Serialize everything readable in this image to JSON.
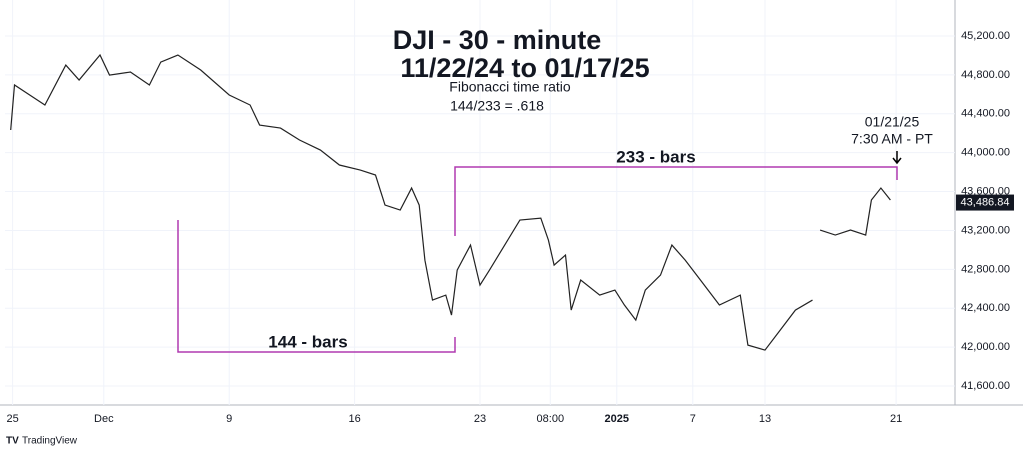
{
  "chart_data": {
    "type": "line",
    "title": "DJI - 30 - minute",
    "subtitle": "11/22/24 to 01/17/25",
    "annotations": [
      "Fibonacci time ratio",
      "144/233 = .618",
      "233 - bars",
      "144 - bars",
      "01/21/25",
      "7:30 AM - PT"
    ],
    "last_price": {
      "value": 43486.84,
      "label": "43,486.84"
    },
    "brand": "TradingView",
    "grid": true,
    "xlim": [
      0,
      500
    ],
    "xticks": [
      {
        "value": 4,
        "label": "25"
      },
      {
        "value": 52,
        "label": "Dec"
      },
      {
        "value": 118,
        "label": "9"
      },
      {
        "value": 184,
        "label": "16"
      },
      {
        "value": 250,
        "label": "23"
      },
      {
        "value": 287,
        "label": "08:00"
      },
      {
        "value": 322,
        "label": "2025"
      },
      {
        "value": 362,
        "label": "7"
      },
      {
        "value": 400,
        "label": "13"
      },
      {
        "value": 469,
        "label": "21"
      }
    ],
    "ylim": [
      41405,
      45570
    ],
    "yticks": [
      {
        "value": 41600,
        "label": "41,600.00"
      },
      {
        "value": 42000,
        "label": "42,000.00"
      },
      {
        "value": 42400,
        "label": "42,400.00"
      },
      {
        "value": 42800,
        "label": "42,800.00"
      },
      {
        "value": 43200,
        "label": "43,200.00"
      },
      {
        "value": 43600,
        "label": "43,600.00"
      },
      {
        "value": 44000,
        "label": "44,000.00"
      },
      {
        "value": 44400,
        "label": "44,400.00"
      },
      {
        "value": 44800,
        "label": "44,800.00"
      },
      {
        "value": 45200,
        "label": "45,200.00"
      }
    ],
    "series": [
      {
        "color": "#222222",
        "x": [
          3,
          5,
          13,
          21,
          32,
          39,
          50,
          55,
          66,
          76,
          82,
          91,
          103,
          118,
          129,
          134,
          145,
          155,
          166,
          176,
          187,
          195,
          200,
          208,
          214,
          218,
          221,
          225,
          232,
          235,
          238,
          245,
          250,
          255,
          263,
          271,
          282,
          286,
          289,
          295,
          298,
          303,
          313,
          321,
          326,
          332,
          337,
          345,
          351,
          358,
          366,
          376,
          387,
          391,
          400,
          408,
          416,
          425,
          427,
          429,
          437,
          445,
          453,
          456,
          461,
          466
        ],
        "values": [
          44233,
          44696,
          44593,
          44490,
          44901,
          44747,
          45004,
          44798,
          44829,
          44696,
          44932,
          45004,
          44850,
          44593,
          44490,
          44284,
          44253,
          44130,
          44027,
          43873,
          43821,
          43770,
          43461,
          43410,
          43636,
          43461,
          42895,
          42484,
          42535,
          42330,
          42793,
          43050,
          42638,
          42793,
          43050,
          43307,
          43327,
          43101,
          42844,
          42947,
          42381,
          42690,
          42535,
          42587,
          42433,
          42278,
          42587,
          42741,
          43050,
          42895,
          42690,
          42433,
          42535,
          42021,
          41970,
          42175,
          42381,
          42484,
          null,
          43204,
          43153,
          43204,
          43153,
          43513,
          43636,
          43513
        ]
      }
    ]
  }
}
